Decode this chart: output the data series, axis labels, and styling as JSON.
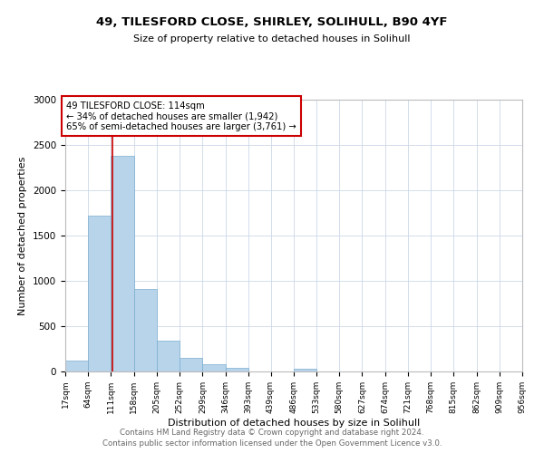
{
  "title": "49, TILESFORD CLOSE, SHIRLEY, SOLIHULL, B90 4YF",
  "subtitle": "Size of property relative to detached houses in Solihull",
  "xlabel": "Distribution of detached houses by size in Solihull",
  "ylabel": "Number of detached properties",
  "footer_line1": "Contains HM Land Registry data © Crown copyright and database right 2024.",
  "footer_line2": "Contains public sector information licensed under the Open Government Licence v3.0.",
  "bin_edges": [
    17,
    64,
    111,
    158,
    205,
    252,
    299,
    346,
    393,
    439,
    486,
    533,
    580,
    627,
    674,
    721,
    768,
    815,
    862,
    909,
    956
  ],
  "bin_counts": [
    120,
    1720,
    2380,
    910,
    340,
    150,
    80,
    45,
    0,
    0,
    30,
    0,
    0,
    0,
    0,
    0,
    0,
    0,
    0,
    0
  ],
  "property_line_x": 114,
  "annotation_line1": "49 TILESFORD CLOSE: 114sqm",
  "annotation_line2": "← 34% of detached houses are smaller (1,942)",
  "annotation_line3": "65% of semi-detached houses are larger (3,761) →",
  "bar_color": "#b8d4ea",
  "bar_edge_color": "#7aaed0",
  "line_color": "#cc0000",
  "box_edge_color": "#cc0000",
  "ylim": [
    0,
    3000
  ],
  "yticks": [
    0,
    500,
    1000,
    1500,
    2000,
    2500,
    3000
  ],
  "bg_color": "#ffffff",
  "grid_color": "#ccd8e8"
}
